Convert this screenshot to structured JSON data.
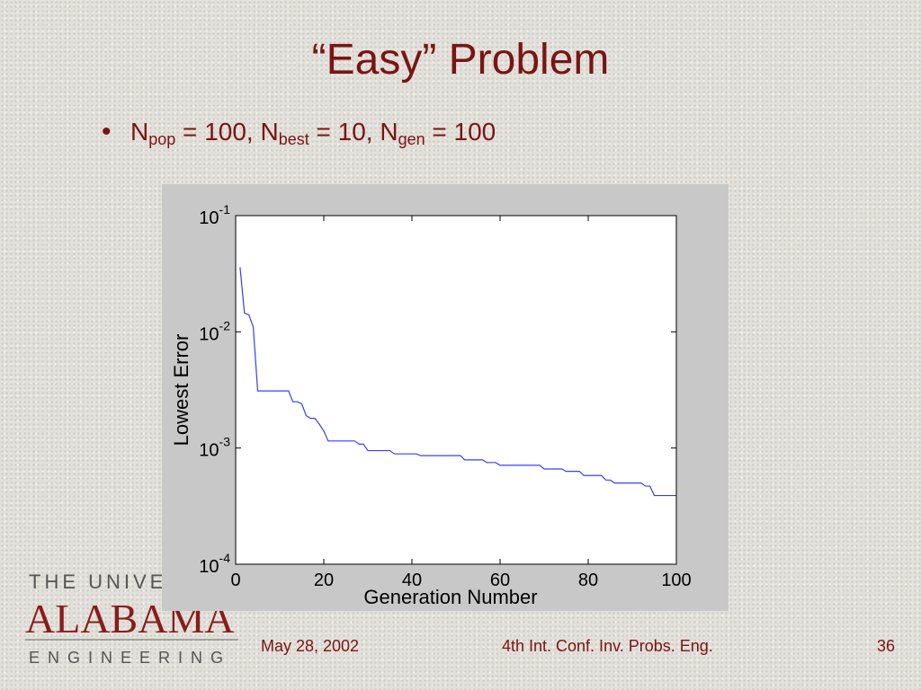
{
  "slide": {
    "title": "“Easy” Problem",
    "bullet": [
      {
        "text": "N"
      },
      {
        "sub": "pop"
      },
      {
        "text": " = 100, N"
      },
      {
        "sub": "best"
      },
      {
        "text": "  = 10, N"
      },
      {
        "sub": "gen"
      },
      {
        "text": " = 100"
      }
    ],
    "logo": {
      "line1": "THE UNIVERSITY OF",
      "line2": "ALABAMA",
      "line3": "ENGINEERING"
    },
    "footer": {
      "date": "May 28, 2002",
      "conference": "4th Int. Conf. Inv. Probs. Eng.",
      "page": "36"
    }
  },
  "chart_data": {
    "type": "line",
    "xlabel": "Generation Number",
    "ylabel": "Lowest Error",
    "color": "#3040ff",
    "log_y": true,
    "xlim": [
      0,
      100
    ],
    "xticks": [
      0,
      20,
      40,
      60,
      80,
      100
    ],
    "ylim": [
      0.0001,
      0.1
    ],
    "yticks": [
      {
        "value": 0.1,
        "label": "10",
        "sup": "-1"
      },
      {
        "value": 0.01,
        "label": "10",
        "sup": "-2"
      },
      {
        "value": 0.001,
        "label": "10",
        "sup": "-3"
      },
      {
        "value": 0.0001,
        "label": "10",
        "sup": "-4"
      }
    ],
    "x": [
      1,
      2,
      3,
      4,
      5,
      6,
      7,
      8,
      9,
      10,
      11,
      12,
      13,
      14,
      15,
      16,
      17,
      18,
      19,
      20,
      21,
      22,
      23,
      24,
      25,
      26,
      27,
      28,
      29,
      30,
      31,
      32,
      33,
      34,
      35,
      36,
      37,
      38,
      39,
      40,
      41,
      42,
      43,
      44,
      45,
      46,
      47,
      48,
      49,
      50,
      51,
      52,
      53,
      54,
      55,
      56,
      57,
      58,
      59,
      60,
      61,
      62,
      63,
      64,
      65,
      66,
      67,
      68,
      69,
      70,
      71,
      72,
      73,
      74,
      75,
      76,
      77,
      78,
      79,
      80,
      81,
      82,
      83,
      84,
      85,
      86,
      87,
      88,
      89,
      90,
      91,
      92,
      93,
      94,
      95,
      96,
      97,
      98,
      99,
      100
    ],
    "values": [
      0.036,
      0.0145,
      0.014,
      0.011,
      0.0031,
      0.0031,
      0.0031,
      0.0031,
      0.0031,
      0.0031,
      0.0031,
      0.0031,
      0.0025,
      0.0025,
      0.0024,
      0.0019,
      0.0018,
      0.0018,
      0.0016,
      0.0014,
      0.00115,
      0.00115,
      0.00115,
      0.00115,
      0.00115,
      0.00115,
      0.00115,
      0.00108,
      0.00108,
      0.00095,
      0.00095,
      0.00095,
      0.00095,
      0.00095,
      0.00095,
      0.00089,
      0.00089,
      0.00089,
      0.00089,
      0.00089,
      0.00089,
      0.00086,
      0.00086,
      0.00086,
      0.00086,
      0.00086,
      0.00086,
      0.00086,
      0.00086,
      0.00086,
      0.00086,
      0.00079,
      0.00079,
      0.00079,
      0.00079,
      0.00079,
      0.00075,
      0.00075,
      0.00075,
      0.00071,
      0.00071,
      0.00071,
      0.00071,
      0.00071,
      0.00071,
      0.00071,
      0.00071,
      0.00071,
      0.00071,
      0.00066,
      0.00066,
      0.00066,
      0.00066,
      0.00066,
      0.00063,
      0.00063,
      0.00063,
      0.00063,
      0.00058,
      0.00058,
      0.00058,
      0.00058,
      0.00058,
      0.00053,
      0.00053,
      0.0005,
      0.0005,
      0.0005,
      0.0005,
      0.0005,
      0.0005,
      0.0005,
      0.00047,
      0.00047,
      0.00039,
      0.00039,
      0.00039,
      0.00039,
      0.00039,
      0.00039
    ]
  }
}
